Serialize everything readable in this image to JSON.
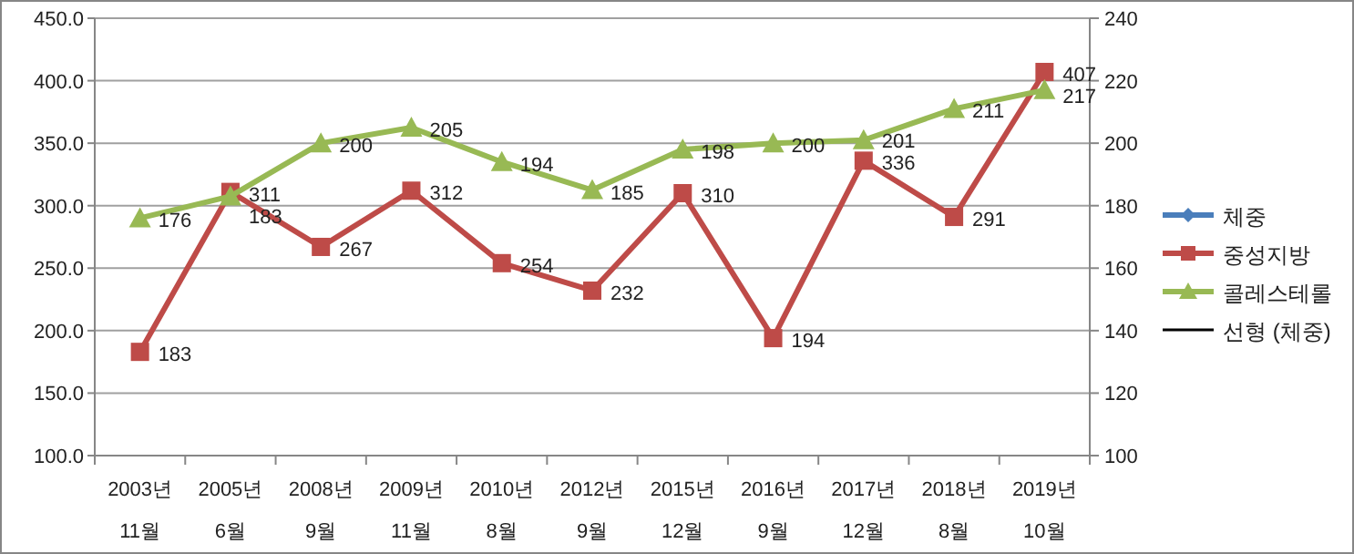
{
  "chart_data": {
    "type": "line",
    "categories": [
      "2003년\n11월",
      "2005년\n6월",
      "2008년\n9월",
      "2009년\n11월",
      "2010년\n8월",
      "2012년\n9월",
      "2015년\n12월",
      "2016년\n9월",
      "2017년\n12월",
      "2018년\n8월",
      "2019년\n10월"
    ],
    "series": [
      {
        "name": "체중",
        "color": "#4a7ebb",
        "marker": "diamond",
        "values": [
          null,
          null,
          null,
          null,
          null,
          null,
          null,
          null,
          null,
          null,
          null
        ]
      },
      {
        "name": "중성지방",
        "color": "#be4b48",
        "marker": "square",
        "values": [
          183,
          311,
          267,
          312,
          254,
          232,
          310,
          194,
          336,
          291,
          407
        ]
      },
      {
        "name": "콜레스테롤",
        "color": "#98b954",
        "marker": "triangle",
        "axis": "y2",
        "values": [
          176,
          183,
          200,
          205,
          194,
          185,
          198,
          200,
          201,
          211,
          217
        ]
      },
      {
        "name": "선형 (체중)",
        "color": "#000000",
        "marker": "none",
        "values": [
          null,
          null,
          null,
          null,
          null,
          null,
          null,
          null,
          null,
          null,
          null
        ]
      }
    ],
    "ylim": [
      100,
      450
    ],
    "yticks": [
      {
        "value": 100,
        "label": "100.0"
      },
      {
        "value": 150,
        "label": "150.0"
      },
      {
        "value": 200,
        "label": "200.0"
      },
      {
        "value": 250,
        "label": "250.0"
      },
      {
        "value": 300,
        "label": "300.0"
      },
      {
        "value": 350,
        "label": "350.0"
      },
      {
        "value": 400,
        "label": "400.0"
      },
      {
        "value": 450,
        "label": "450.0"
      }
    ],
    "y2lim": [
      100,
      240
    ],
    "y2ticks": [
      100,
      120,
      140,
      160,
      180,
      200,
      220,
      240
    ],
    "grid": "y",
    "legend": "right",
    "data_labels": true
  }
}
